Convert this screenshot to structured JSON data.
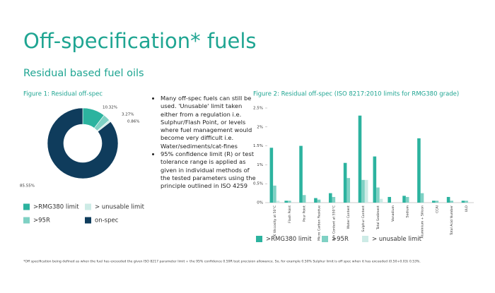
{
  "title": "Off-specification* fuels",
  "subtitle": "Residual based fuel oils",
  "bullets": [
    "Many off-spec fuels can still be used. 'Unusable' limit taken either from a regulation i.e. Sulphur/Flash Point, or levels where fuel management would become very difficult i.e. Water/sediments/cat-fines",
    "95% confidence limit (R) or test tolerance range is applied as given in individual methods of the tested parameters using the principle outlined in ISO 4259"
  ],
  "footnote": "*Off specification being defined as when the fuel has exceeded the given ISO 8217 parameter limit + the 95% confidence 0.59R test precision allowance. So, for example 0.50% Sulphur limit is off spec when it has exceeded (0.50+0.03) 0.53%.",
  "chart_data": [
    {
      "type": "donut",
      "title": "Figure 1: Residual off-spec",
      "categories": [
        ">RMG380 limit",
        ">95R",
        "> unusable limit",
        "on-spec"
      ],
      "values": [
        10.32,
        3.27,
        0.86,
        85.55
      ],
      "value_labels": [
        "10.32%",
        "3.27%",
        "0.86%",
        "85.55%"
      ],
      "colors": [
        "#2cb39f",
        "#7fd1c4",
        "#cdebe6",
        "#0f3c5c"
      ]
    },
    {
      "type": "bar",
      "title": "Figure 2: Residual off-spec (ISO 8217:2010 limits for RMG380 grade)",
      "categories": [
        "K Viscosity at 50°C",
        "Flash Point",
        "Pour Point",
        "Micro Carbon Residue",
        "Ash Content at 550°C",
        "Water Content",
        "Sulphur Content",
        "Total Sediment",
        "Vanadium",
        "Sodium",
        "Aluminium + Silicon",
        "CCAI",
        "Total Acid Number",
        "ULO"
      ],
      "series": [
        {
          "name": ">RMG380 limit",
          "color": "#2cb39f",
          "values": [
            1.45,
            0.05,
            1.5,
            0.12,
            0.25,
            1.05,
            2.3,
            1.22,
            0.15,
            0.18,
            1.7,
            0.05,
            0.15,
            0.05
          ]
        },
        {
          "name": ">95R",
          "color": "#7fd1c4",
          "values": [
            0.45,
            0.05,
            0.2,
            0.08,
            0.15,
            0.65,
            0.6,
            0.4,
            0,
            0.15,
            0.25,
            0.05,
            0.05,
            0.05
          ]
        },
        {
          "name": "> unusable limit",
          "color": "#cdebe6",
          "values": [
            0.05,
            0,
            0,
            0,
            0,
            0,
            0.6,
            0.1,
            0,
            0,
            0,
            0,
            0,
            0
          ]
        }
      ],
      "ylim": [
        0,
        2.5
      ],
      "yticks": [
        {
          "value": 0,
          "label": "0%"
        },
        {
          "value": 0.5,
          "label": "0.5%"
        },
        {
          "value": 1,
          "label": "1%"
        },
        {
          "value": 1.5,
          "label": "1.5%"
        },
        {
          "value": 2,
          "label": "2%"
        },
        {
          "value": 2.5,
          "label": "2.5%"
        }
      ],
      "grid": false
    }
  ]
}
